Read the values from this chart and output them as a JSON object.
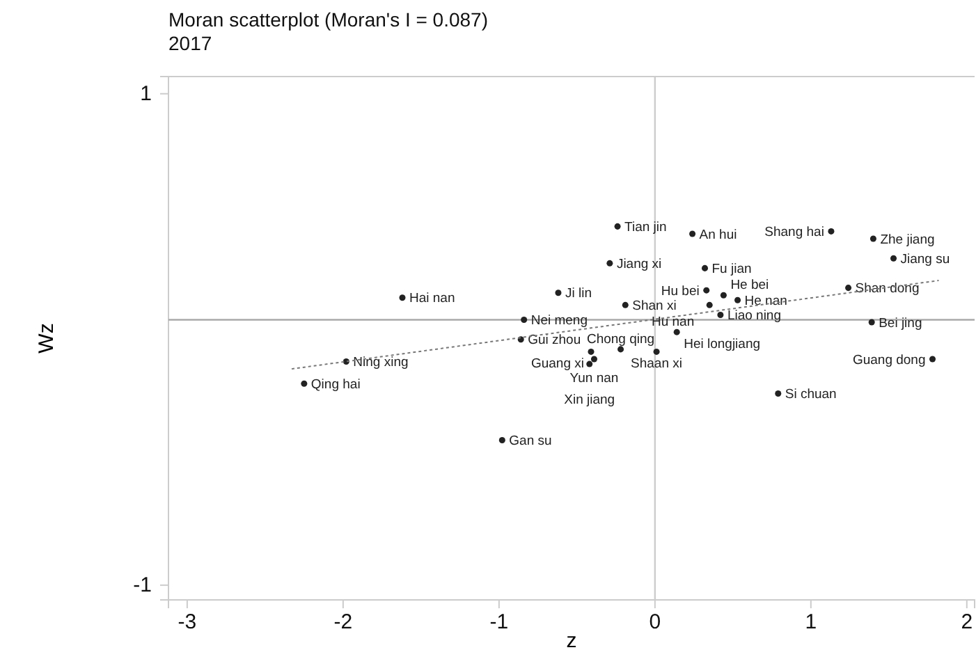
{
  "chart_data": {
    "type": "scatter",
    "title": "Moran scatterplot (Moran's I = 0.087)",
    "subtitle": "2017",
    "xlabel": "z",
    "ylabel": "Wz",
    "xlim": [
      -3.12,
      2.05
    ],
    "ylim": [
      -1.06,
      1.07
    ],
    "xticks": [
      -3,
      -2,
      -1,
      0,
      1,
      2
    ],
    "yticks": [
      -1,
      1
    ],
    "grid": false,
    "marker": "circle",
    "ref_lines": [
      {
        "axis": "y",
        "value": 0.08,
        "color": "#aaaaaa"
      },
      {
        "axis": "x",
        "value": 0,
        "color": "#cccccc"
      }
    ],
    "series": [
      {
        "color": "#222222",
        "x": [
          -0.24,
          0.24,
          1.13,
          1.4,
          1.53,
          -0.29,
          0.32,
          -1.62,
          -0.62,
          -0.19,
          1.24,
          0.33,
          0.44,
          0.53,
          0.35,
          0.42,
          -0.84,
          1.39,
          0.14,
          -0.86,
          -1.98,
          -0.22,
          0.01,
          -0.41,
          -0.39,
          -0.42,
          -2.25,
          1.78,
          0.79,
          -0.98
        ],
        "values": [
          0.46,
          0.43,
          0.44,
          0.41,
          0.33,
          0.31,
          0.29,
          0.17,
          0.19,
          0.14,
          0.21,
          0.2,
          0.18,
          0.16,
          0.14,
          0.1,
          0.08,
          0.07,
          0.03,
          0.0,
          -0.09,
          -0.04,
          -0.05,
          -0.05,
          -0.08,
          -0.1,
          -0.18,
          -0.08,
          -0.22,
          -0.41
        ],
        "value_labels": [
          "Tian jin",
          "An hui",
          "Shang hai",
          "Zhe jiang",
          "Jiang su",
          "Jiang xi",
          "Fu jian",
          "Hai  nan",
          "Ji lin",
          "Shan xi",
          "Shan dong",
          "Hu bei",
          "He bei",
          "He nan",
          "Hu nan",
          "Liao ning",
          "Nei meng",
          "Bei jing",
          "Hei longjiang",
          "Gui zhou",
          "Ning xing",
          "Chong qing",
          "Shaan xi",
          "Guang xi",
          "Yun nan",
          "Xin jiang",
          "Qing hai",
          "Guang dong",
          "Si chuan",
          "Gan su"
        ]
      },
      {
        "type": "line",
        "color": "#777777",
        "line_style": "dotted",
        "marker": "none",
        "x": [
          -2.33,
          1.82
        ],
        "values": [
          -0.12,
          0.24
        ]
      }
    ]
  }
}
